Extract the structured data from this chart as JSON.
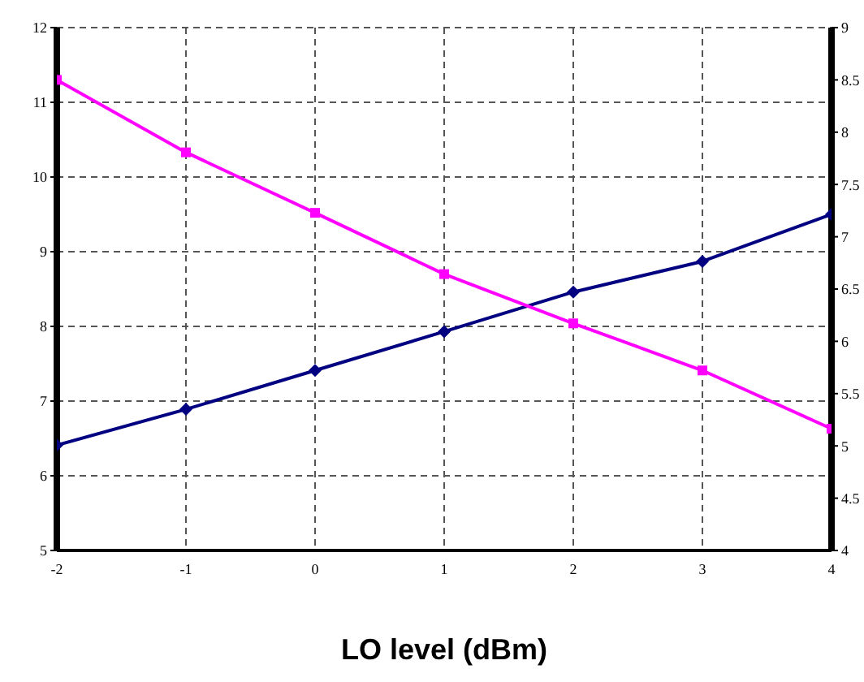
{
  "chart_data": {
    "type": "line",
    "xlabel": "LO level (dBm)",
    "x": [
      -2,
      -1,
      0,
      1,
      2,
      3,
      4
    ],
    "series": [
      {
        "color": "#000080",
        "values": [
          6.41,
          6.89,
          7.41,
          7.93,
          8.46,
          8.87,
          9.5
        ],
        "marker": "diamond"
      },
      {
        "color": "#ff00ff",
        "values": [
          11.3,
          10.33,
          9.52,
          8.7,
          8.04,
          7.41,
          6.63
        ],
        "marker": "square"
      }
    ],
    "xlim": [
      -2,
      4
    ],
    "xticks": [
      -2,
      -1,
      0,
      1,
      2,
      3,
      4
    ],
    "ylim": [
      5,
      12
    ],
    "yticks": [
      5,
      6,
      7,
      8,
      9,
      10,
      11,
      12
    ],
    "y2lim": [
      4,
      9
    ],
    "y2ticks": [
      4,
      4.5,
      5,
      5.5,
      6,
      6.5,
      7,
      7.5,
      8,
      8.5,
      9
    ],
    "grid": true,
    "legend": false,
    "line_style": "solid"
  }
}
